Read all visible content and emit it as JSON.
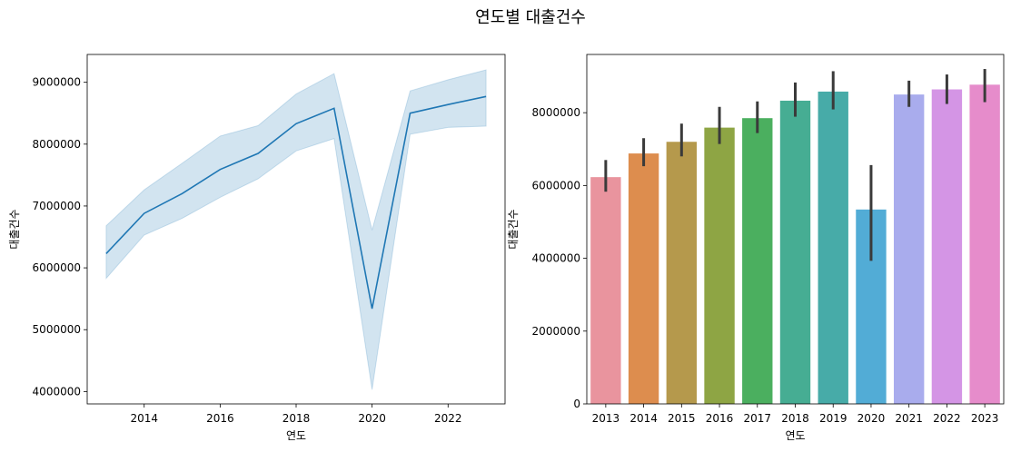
{
  "figure": {
    "suptitle": "연도별 대출건수"
  },
  "chart_data": [
    {
      "type": "line",
      "xlabel": "연도",
      "ylabel": "대출건수",
      "xlim": [
        2012.5,
        2023.5
      ],
      "ylim": [
        3800000,
        9450000
      ],
      "xticks": [
        2014,
        2016,
        2018,
        2020,
        2022
      ],
      "yticks": [
        4000000,
        5000000,
        6000000,
        7000000,
        8000000,
        9000000
      ],
      "grid": false,
      "color": "#1f77b4",
      "band_color": "#1f77b4",
      "x": [
        2013,
        2014,
        2015,
        2016,
        2017,
        2018,
        2019,
        2020,
        2021,
        2022,
        2023
      ],
      "y": [
        6230000,
        6880000,
        7200000,
        7590000,
        7850000,
        8330000,
        8580000,
        5340000,
        8500000,
        8640000,
        8770000
      ],
      "ci_lower": [
        5830000,
        6530000,
        6800000,
        7140000,
        7440000,
        7890000,
        8090000,
        4030000,
        8160000,
        8270000,
        8290000
      ],
      "ci_upper": [
        6680000,
        7260000,
        7690000,
        8130000,
        8300000,
        8810000,
        9140000,
        6610000,
        8860000,
        9040000,
        9200000
      ]
    },
    {
      "type": "bar",
      "xlabel": "연도",
      "ylabel": "대출건수",
      "ylim": [
        0,
        9600000
      ],
      "yticks": [
        0,
        2000000,
        4000000,
        6000000,
        8000000
      ],
      "grid": false,
      "categories": [
        "2013",
        "2014",
        "2015",
        "2016",
        "2017",
        "2018",
        "2019",
        "2020",
        "2021",
        "2022",
        "2023"
      ],
      "values": [
        6230000,
        6880000,
        7200000,
        7590000,
        7850000,
        8330000,
        8580000,
        5340000,
        8500000,
        8640000,
        8770000
      ],
      "err_lower": [
        5830000,
        6530000,
        6800000,
        7140000,
        7440000,
        7890000,
        8090000,
        3930000,
        8160000,
        8240000,
        8290000
      ],
      "err_upper": [
        6700000,
        7300000,
        7700000,
        8160000,
        8310000,
        8830000,
        9140000,
        6560000,
        8880000,
        9050000,
        9200000
      ],
      "colors": [
        "#e9949e",
        "#dd8d4e",
        "#b5994c",
        "#8ea544",
        "#4baf5f",
        "#46ad93",
        "#47aba8",
        "#52acd6",
        "#a9aced",
        "#d495e5",
        "#e68ccb"
      ],
      "error_color": "#3a3a3a"
    }
  ]
}
